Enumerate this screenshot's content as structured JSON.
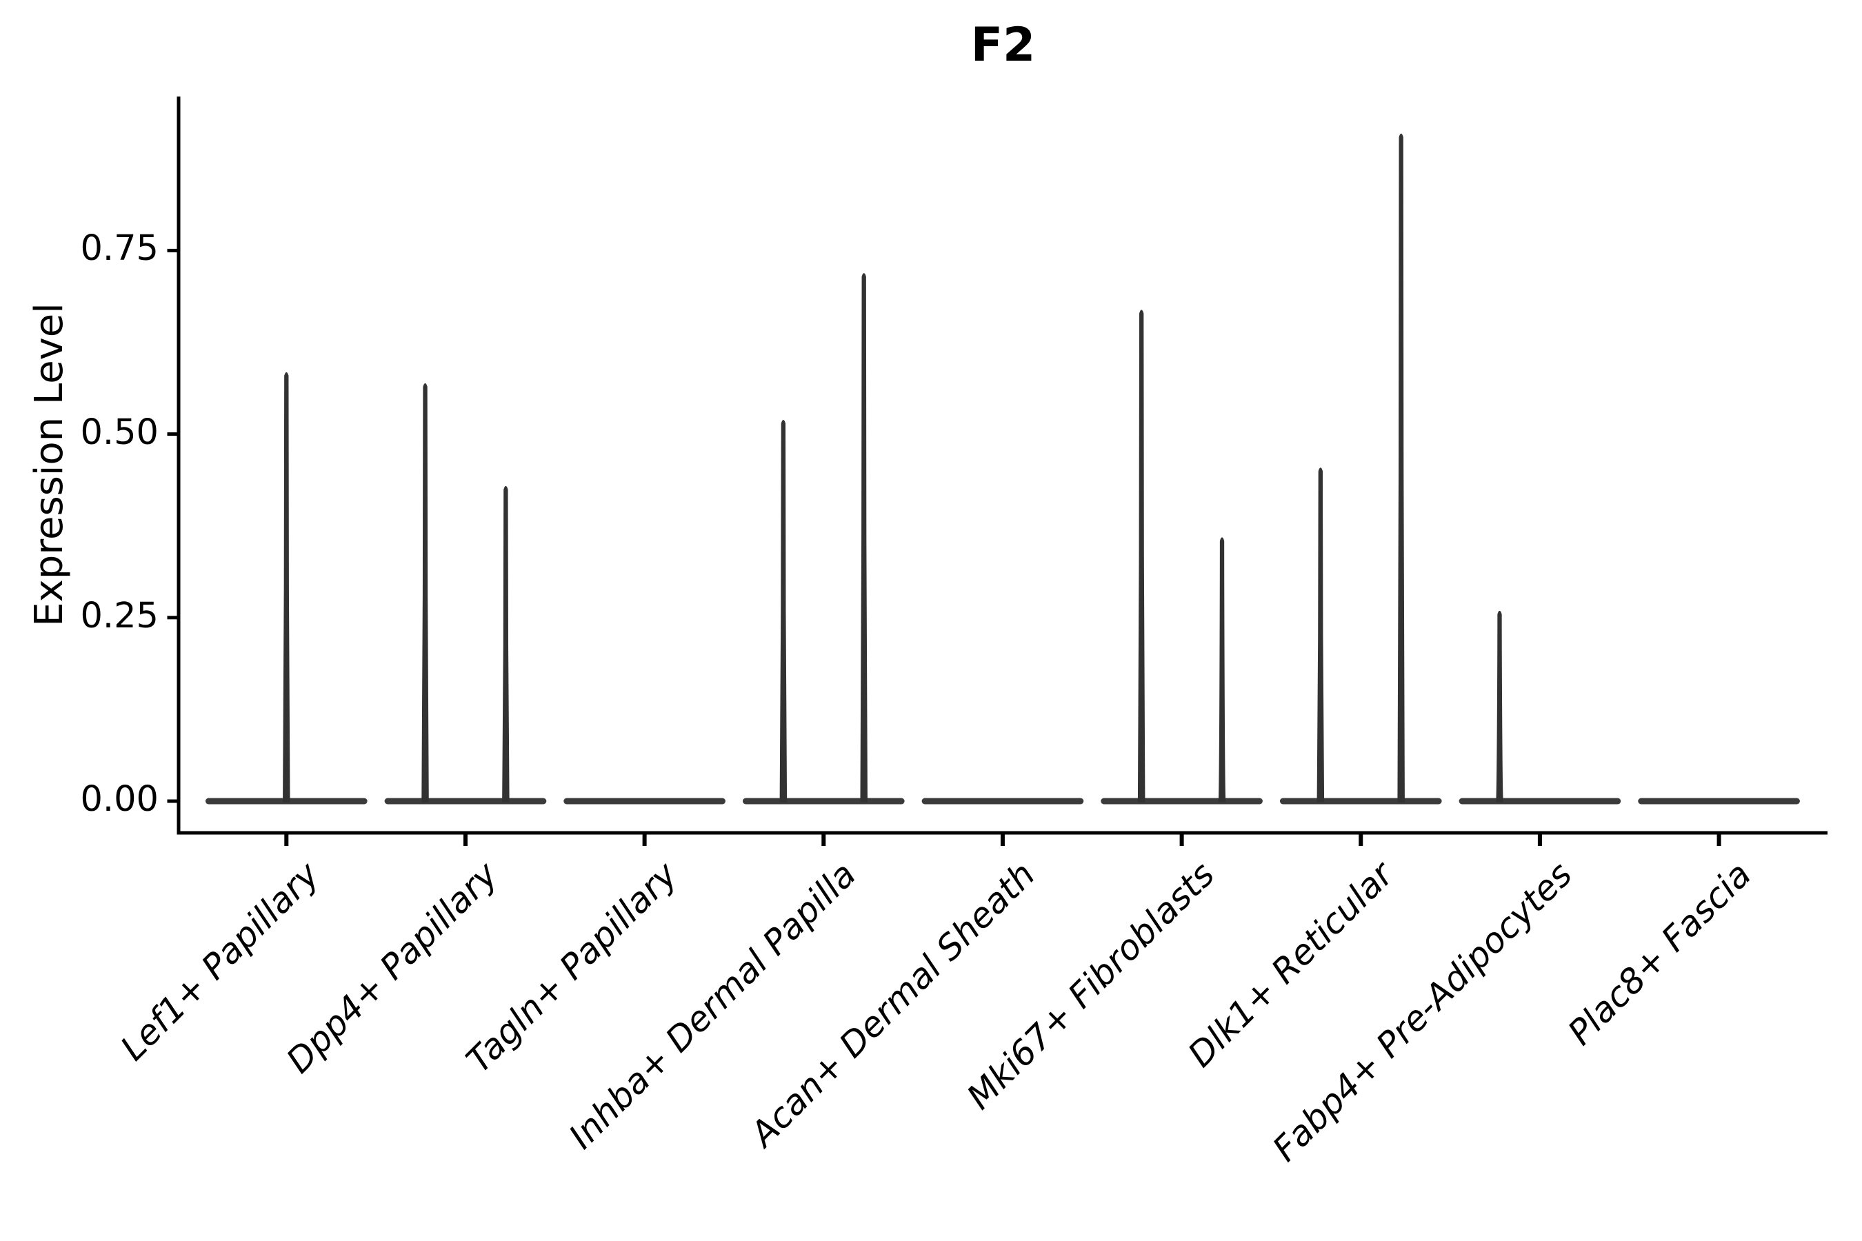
{
  "page": {
    "background": "#ffffff"
  },
  "chart_data": {
    "type": "violin",
    "title": "F2",
    "ylabel": "Expression Level",
    "xlabel": "",
    "grid": false,
    "legend_position": "none",
    "ytick_labels": [
      "0.00",
      "0.25",
      "0.50",
      "0.75"
    ],
    "ytick_values": [
      0,
      0.25,
      0.5,
      0.75
    ],
    "ylim": [
      -0.043,
      0.959
    ],
    "categories": [
      "Lef1+ Papillary",
      "Dpp4+ Papillary",
      "Tagln+ Papillary",
      "Inhba+ Dermal Papilla",
      "Acan+ Dermal Sheath",
      "Mki67+ Fibroblasts",
      "Dlk1+ Reticular",
      "Fabp4+ Pre-Adipocytes",
      "Plac8+ Fascia"
    ],
    "violin_width": 0.9,
    "violins": [
      {
        "category": "Lef1+ Papillary",
        "spikes": [
          {
            "dx": 0,
            "max": 0.585
          }
        ]
      },
      {
        "category": "Dpp4+ Papillary",
        "spikes": [
          {
            "dx": -0.225,
            "max": 0.57
          },
          {
            "dx": 0.225,
            "max": 0.43
          }
        ]
      },
      {
        "category": "Tagln+ Papillary",
        "spikes": []
      },
      {
        "category": "Inhba+ Dermal Papilla",
        "spikes": [
          {
            "dx": -0.225,
            "max": 0.52
          },
          {
            "dx": 0.225,
            "max": 0.72
          }
        ]
      },
      {
        "category": "Acan+ Dermal Sheath",
        "spikes": []
      },
      {
        "category": "Mki67+ Fibroblasts",
        "spikes": [
          {
            "dx": -0.225,
            "max": 0.67
          },
          {
            "dx": 0.225,
            "max": 0.36
          }
        ]
      },
      {
        "category": "Dlk1+ Reticular",
        "spikes": [
          {
            "dx": -0.225,
            "max": 0.455
          },
          {
            "dx": 0.225,
            "max": 0.91
          }
        ]
      },
      {
        "category": "Fabp4+ Pre-Adipocytes",
        "spikes": [
          {
            "dx": -0.225,
            "max": 0.26
          }
        ]
      },
      {
        "category": "Plac8+ Fascia",
        "spikes": []
      }
    ],
    "colors": {
      "violin_spike": "#323232",
      "violin_base": "#3b3b3b",
      "axis": "#000000",
      "text": "#000000",
      "background": "#ffffff"
    }
  }
}
